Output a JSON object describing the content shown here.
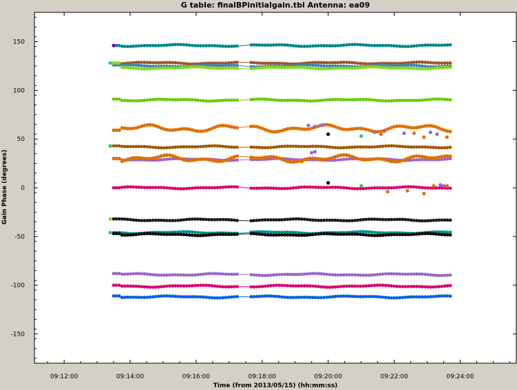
{
  "chart_data": {
    "type": "scatter",
    "title": "G table: finalBPinitialgain.tbl    Antenna: ea09",
    "xlabel": "Time (from 2013/05/15) (hh:mm:ss)",
    "ylabel": "Gain Phase (degrees)",
    "x_unit": "minutes after 09:12:00",
    "xlim": [
      -0.9,
      13.7
    ],
    "ylim": [
      -180,
      180
    ],
    "x_ticks": [
      {
        "value": 0,
        "label": "09:12:00"
      },
      {
        "value": 2,
        "label": "09:14:00"
      },
      {
        "value": 4,
        "label": "09:16:00"
      },
      {
        "value": 6,
        "label": "09:18:00"
      },
      {
        "value": 8,
        "label": "09:20:00"
      },
      {
        "value": 10,
        "label": "09:22:00"
      },
      {
        "value": 12,
        "label": "09:24:00"
      }
    ],
    "y_ticks": [
      {
        "value": 150,
        "label": "150"
      },
      {
        "value": 100,
        "label": "100"
      },
      {
        "value": 50,
        "label": "50"
      },
      {
        "value": 0,
        "label": "0"
      },
      {
        "value": -50,
        "label": "-50"
      },
      {
        "value": -100,
        "label": "-100"
      },
      {
        "value": -150,
        "label": "-150"
      }
    ],
    "grid": false,
    "legend": "none",
    "scan_start": 1.5,
    "scan_end": 11.7,
    "gap": [
      5.3,
      5.6
    ],
    "series": [
      {
        "color": "#00868b",
        "level": 146,
        "start_level": 146
      },
      {
        "color": "#a0522d",
        "level": 128,
        "start_level": 128
      },
      {
        "color": "#4682b4",
        "level": 125,
        "start_level": 126
      },
      {
        "color": "#7fdd1f",
        "level": 123,
        "start_level": 128
      },
      {
        "color": "#66cd00",
        "level": 90,
        "start_level": 91
      },
      {
        "color": "#e07000",
        "level": 61,
        "start_level": 59
      },
      {
        "color": "#a05a00",
        "level": 42,
        "start_level": 43
      },
      {
        "color": "#9966cc",
        "level": 29,
        "start_level": 30
      },
      {
        "color": "#dd7000",
        "level": 30,
        "start_level": 30
      },
      {
        "color": "#dc0070",
        "level": 0,
        "start_level": 0
      },
      {
        "color": "#1a1a1a",
        "level": -33,
        "start_level": -32
      },
      {
        "color": "#009090",
        "level": -46,
        "start_level": -46
      },
      {
        "color": "#000000",
        "level": -48,
        "start_level": -47
      },
      {
        "color": "#9966cc",
        "level": -89,
        "start_level": -88
      },
      {
        "color": "#dc0070",
        "level": -101,
        "start_level": -100
      },
      {
        "color": "#0060dd",
        "level": -112,
        "start_level": -111
      }
    ],
    "extra_points": [
      {
        "x": 8.0,
        "y": 55,
        "color": "#000000"
      },
      {
        "x": 8.0,
        "y": 5,
        "color": "#000000"
      },
      {
        "x": 1.5,
        "y": 146,
        "color": "#6600cc"
      },
      {
        "x": 9.0,
        "y": 53,
        "color": "#22cc55"
      },
      {
        "x": 9.0,
        "y": 2,
        "color": "#22cc55"
      },
      {
        "x": 7.4,
        "y": 64,
        "color": "#9966cc"
      },
      {
        "x": 7.6,
        "y": 63,
        "color": "#9966cc"
      },
      {
        "x": 7.8,
        "y": 64,
        "color": "#9966cc"
      },
      {
        "x": 9.4,
        "y": 57,
        "color": "#9966cc"
      },
      {
        "x": 9.7,
        "y": 58,
        "color": "#9966cc"
      },
      {
        "x": 10.3,
        "y": 56,
        "color": "#9966cc"
      },
      {
        "x": 11.1,
        "y": 57,
        "color": "#9966cc"
      },
      {
        "x": 11.3,
        "y": 55,
        "color": "#9966cc"
      },
      {
        "x": 9.6,
        "y": 55,
        "color": "#e07000"
      },
      {
        "x": 10.6,
        "y": 56,
        "color": "#e07000"
      },
      {
        "x": 10.9,
        "y": 52,
        "color": "#e07000"
      },
      {
        "x": 11.6,
        "y": 52,
        "color": "#e07000"
      },
      {
        "x": 7.5,
        "y": 36,
        "color": "#9966cc"
      },
      {
        "x": 7.6,
        "y": 37,
        "color": "#9966cc"
      },
      {
        "x": 7.2,
        "y": 27,
        "color": "#dd7000"
      },
      {
        "x": 9.8,
        "y": -4,
        "color": "#dd7000"
      },
      {
        "x": 10.4,
        "y": -3,
        "color": "#dd7000"
      },
      {
        "x": 10.9,
        "y": -6,
        "color": "#dd7000"
      },
      {
        "x": 11.2,
        "y": 2,
        "color": "#dd7000"
      },
      {
        "x": 11.6,
        "y": 2,
        "color": "#dd7000"
      },
      {
        "x": 11.4,
        "y": 3,
        "color": "#9966cc"
      },
      {
        "x": 11.5,
        "y": 2,
        "color": "#9966cc"
      },
      {
        "x": 1.4,
        "y": -32,
        "color": "#7fdd1f"
      },
      {
        "x": 1.4,
        "y": 43,
        "color": "#22cc55"
      },
      {
        "x": 1.4,
        "y": 128,
        "color": "#22cc55"
      },
      {
        "x": 1.4,
        "y": -46,
        "color": "#22cc55"
      }
    ]
  }
}
